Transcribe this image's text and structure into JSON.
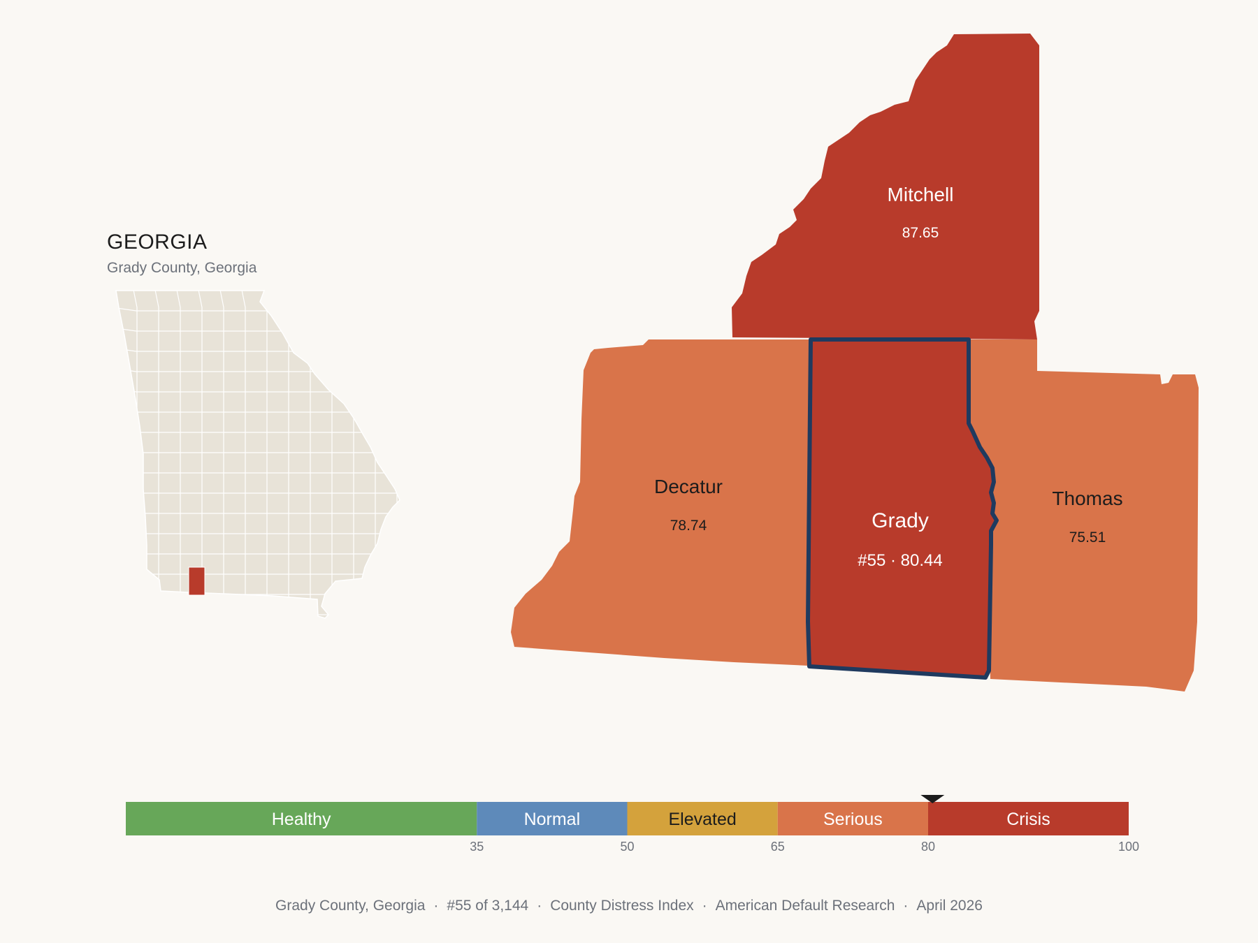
{
  "inset": {
    "title": "GEORGIA",
    "subtitle": "Grady County, Georgia"
  },
  "counties": [
    {
      "id": "mitchell",
      "name": "Mitchell",
      "value_text": "87.65",
      "value": 87.65,
      "color": "#b83b2b"
    },
    {
      "id": "decatur",
      "name": "Decatur",
      "value_text": "78.74",
      "value": 78.74,
      "color": "#d9744a"
    },
    {
      "id": "grady",
      "name": "Grady",
      "value_text": "#55 · 80.44",
      "value": 80.44,
      "color": "#b83b2b",
      "highlight": "#1f3a5f"
    },
    {
      "id": "thomas",
      "name": "Thomas",
      "value_text": "75.51",
      "value": 75.51,
      "color": "#d9744a"
    }
  ],
  "legend": {
    "marker_value": 80.44,
    "bands": [
      {
        "label": "Healthy",
        "from": 0,
        "to": 35,
        "color": "#67a759",
        "text_color": "#ffffff"
      },
      {
        "label": "Normal",
        "from": 35,
        "to": 50,
        "color": "#5e8aba",
        "text_color": "#ffffff"
      },
      {
        "label": "Elevated",
        "from": 50,
        "to": 65,
        "color": "#d4a23c",
        "text_color": "#1c1c1c"
      },
      {
        "label": "Serious",
        "from": 65,
        "to": 80,
        "color": "#d9744a",
        "text_color": "#ffffff"
      },
      {
        "label": "Crisis",
        "from": 80,
        "to": 100,
        "color": "#b83b2b",
        "text_color": "#ffffff"
      }
    ],
    "ticks": [
      "35",
      "50",
      "65",
      "80",
      "100"
    ]
  },
  "footer": {
    "county": "Grady County, Georgia",
    "rank": "#55 of 3,144",
    "index": "County Distress Index",
    "source": "American Default Research",
    "date": "April 2026",
    "separator": "·"
  },
  "state_fill": "#e8e3d8",
  "state_stroke": "#ffffff"
}
